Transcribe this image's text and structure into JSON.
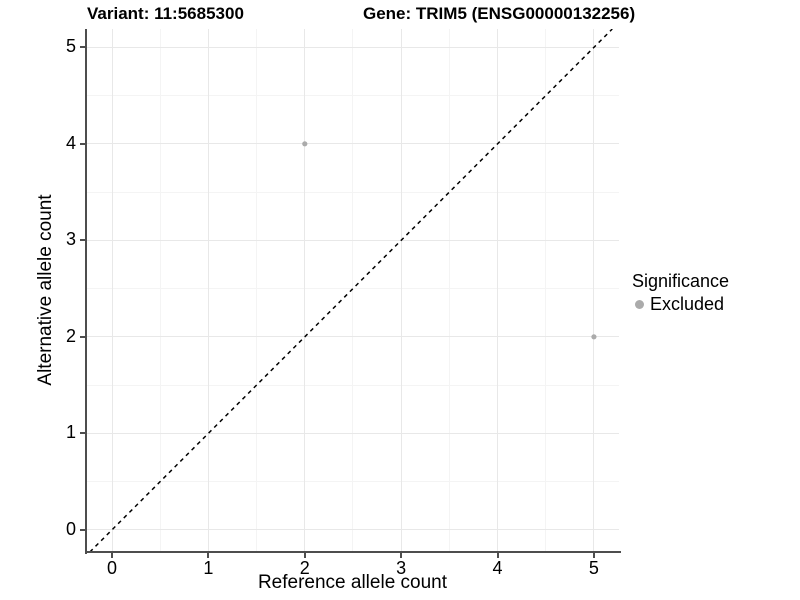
{
  "figure": {
    "title_left": "Variant: 11:5685300",
    "title_right": "Gene: TRIM5 (ENSG00000132256)"
  },
  "chart_data": {
    "type": "scatter",
    "title": "Variant: 11:5685300  Gene: TRIM5 (ENSG00000132256)",
    "xlabel": "Reference allele count",
    "ylabel": "Alternative allele count",
    "xlim": [
      -0.27,
      5.26
    ],
    "ylim": [
      -0.23,
      5.19
    ],
    "xticks": [
      0,
      1,
      2,
      3,
      4,
      5
    ],
    "yticks": [
      0,
      1,
      2,
      3,
      4,
      5
    ],
    "x_minor": [
      0.5,
      1.5,
      2.5,
      3.5,
      4.5
    ],
    "y_minor": [
      0.5,
      1.5,
      2.5,
      3.5,
      4.5
    ],
    "grid": true,
    "points": [
      {
        "x": 2,
        "y": 4,
        "series": "Excluded"
      },
      {
        "x": 5,
        "y": 2,
        "series": "Excluded"
      }
    ],
    "identity_line": {
      "slope": 1,
      "intercept": 0,
      "style": "dashed",
      "color": "#000000"
    },
    "legend": {
      "title": "Significance",
      "position": "right",
      "items": [
        {
          "label": "Excluded",
          "color": "#ababab"
        }
      ]
    },
    "colors": {
      "point": "#ababab",
      "axis_line": "#4d4d4d",
      "grid_major": "#e8e8e8",
      "grid_minor": "#f4f4f4",
      "background": "#ffffff",
      "text": "#000000"
    }
  }
}
